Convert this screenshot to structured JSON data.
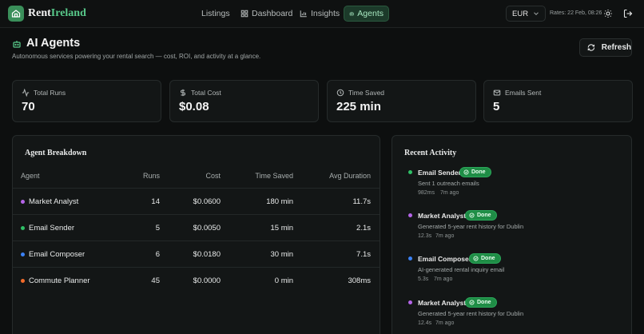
{
  "app": {
    "logo_part1": "Rent",
    "logo_part2": "Ireland",
    "accent": "#58c98a"
  },
  "nav": {
    "listings": "Listings",
    "dashboard": "Dashboard",
    "insights": "Insights",
    "agents": "Agents"
  },
  "header": {
    "currency": "EUR",
    "rates": "Rates: 22 Feb, 08:26"
  },
  "page": {
    "title": "AI Agents",
    "subtitle": "Autonomous services powering your rental search — cost, ROI, and activity at a glance.",
    "refresh_label": "Refresh"
  },
  "stats": [
    {
      "label": "Total Runs",
      "value": "70",
      "icon": "activity-icon"
    },
    {
      "label": "Total Cost",
      "value": "$0.08",
      "icon": "dollar-icon"
    },
    {
      "label": "Time Saved",
      "value": "225 min",
      "icon": "clock-icon"
    },
    {
      "label": "Emails Sent",
      "value": "5",
      "icon": "mail-icon"
    }
  ],
  "breakdown": {
    "title": "Agent Breakdown",
    "columns": [
      "Agent",
      "Runs",
      "Cost",
      "Time Saved",
      "Avg Duration"
    ],
    "rows": [
      {
        "agent": "Market Analyst",
        "runs": "14",
        "cost": "$0.0600",
        "time_saved": "180 min",
        "avg": "11.7s",
        "color": "#b565e8"
      },
      {
        "agent": "Email Sender",
        "runs": "5",
        "cost": "$0.0050",
        "time_saved": "15 min",
        "avg": "2.1s",
        "color": "#2fbf66"
      },
      {
        "agent": "Email Composer",
        "runs": "6",
        "cost": "$0.0180",
        "time_saved": "30 min",
        "avg": "7.1s",
        "color": "#3b82f6"
      },
      {
        "agent": "Commute Planner",
        "runs": "45",
        "cost": "$0.0000",
        "time_saved": "0 min",
        "avg": "308ms",
        "color": "#f26b2a"
      }
    ]
  },
  "activity": {
    "title": "Recent Activity",
    "items": [
      {
        "agent": "Email Sender",
        "status": "Done",
        "desc": "Sent 1 outreach emails",
        "duration": "982ms",
        "ago": "7m ago",
        "color": "#2fbf66"
      },
      {
        "agent": "Market Analyst",
        "status": "Done",
        "desc": "Generated 5-year rent history for Dublin",
        "duration": "12.3s",
        "ago": "7m ago",
        "color": "#b565e8"
      },
      {
        "agent": "Email Composer",
        "status": "Done",
        "desc": "AI-generated rental inquiry email",
        "duration": "5.3s",
        "ago": "7m ago",
        "color": "#3b82f6"
      },
      {
        "agent": "Market Analyst",
        "status": "Done",
        "desc": "Generated 5-year rent history for Dublin",
        "duration": "12.4s",
        "ago": "7m ago",
        "color": "#b565e8"
      }
    ]
  }
}
